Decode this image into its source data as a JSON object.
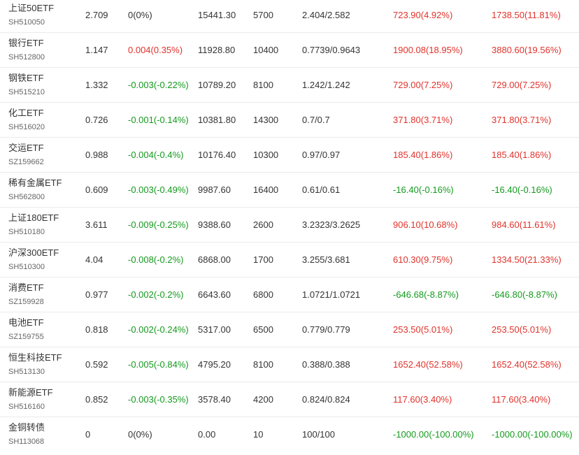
{
  "colors": {
    "up": "#e0322b",
    "down": "#139a1d",
    "neutral": "#333333",
    "row_divider": "#ebebeb"
  },
  "rows": [
    {
      "name": "上证50ETF",
      "code": "SH510050",
      "price": "2.709",
      "change": "0(0%)",
      "change_dir": "neu",
      "value": "15441.30",
      "qty": "5700",
      "cost": "2.404/2.582",
      "pl": "723.90(4.92%)",
      "pl_dir": "up",
      "total": "1738.50(11.81%)",
      "total_dir": "up"
    },
    {
      "name": "银行ETF",
      "code": "SH512800",
      "price": "1.147",
      "change": "0.004(0.35%)",
      "change_dir": "up",
      "value": "11928.80",
      "qty": "10400",
      "cost": "0.7739/0.9643",
      "pl": "1900.08(18.95%)",
      "pl_dir": "up",
      "total": "3880.60(19.56%)",
      "total_dir": "up"
    },
    {
      "name": "钢铁ETF",
      "code": "SH515210",
      "price": "1.332",
      "change": "-0.003(-0.22%)",
      "change_dir": "down",
      "value": "10789.20",
      "qty": "8100",
      "cost": "1.242/1.242",
      "pl": "729.00(7.25%)",
      "pl_dir": "up",
      "total": "729.00(7.25%)",
      "total_dir": "up"
    },
    {
      "name": "化工ETF",
      "code": "SH516020",
      "price": "0.726",
      "change": "-0.001(-0.14%)",
      "change_dir": "down",
      "value": "10381.80",
      "qty": "14300",
      "cost": "0.7/0.7",
      "pl": "371.80(3.71%)",
      "pl_dir": "up",
      "total": "371.80(3.71%)",
      "total_dir": "up"
    },
    {
      "name": "交运ETF",
      "code": "SZ159662",
      "price": "0.988",
      "change": "-0.004(-0.4%)",
      "change_dir": "down",
      "value": "10176.40",
      "qty": "10300",
      "cost": "0.97/0.97",
      "pl": "185.40(1.86%)",
      "pl_dir": "up",
      "total": "185.40(1.86%)",
      "total_dir": "up"
    },
    {
      "name": "稀有金属ETF",
      "code": "SH562800",
      "price": "0.609",
      "change": "-0.003(-0.49%)",
      "change_dir": "down",
      "value": "9987.60",
      "qty": "16400",
      "cost": "0.61/0.61",
      "pl": "-16.40(-0.16%)",
      "pl_dir": "down",
      "total": "-16.40(-0.16%)",
      "total_dir": "down"
    },
    {
      "name": "上证180ETF",
      "code": "SH510180",
      "price": "3.611",
      "change": "-0.009(-0.25%)",
      "change_dir": "down",
      "value": "9388.60",
      "qty": "2600",
      "cost": "3.2323/3.2625",
      "pl": "906.10(10.68%)",
      "pl_dir": "up",
      "total": "984.60(11.61%)",
      "total_dir": "up"
    },
    {
      "name": "沪深300ETF",
      "code": "SH510300",
      "price": "4.04",
      "change": "-0.008(-0.2%)",
      "change_dir": "down",
      "value": "6868.00",
      "qty": "1700",
      "cost": "3.255/3.681",
      "pl": "610.30(9.75%)",
      "pl_dir": "up",
      "total": "1334.50(21.33%)",
      "total_dir": "up"
    },
    {
      "name": "消费ETF",
      "code": "SZ159928",
      "price": "0.977",
      "change": "-0.002(-0.2%)",
      "change_dir": "down",
      "value": "6643.60",
      "qty": "6800",
      "cost": "1.0721/1.0721",
      "pl": "-646.68(-8.87%)",
      "pl_dir": "down",
      "total": "-646.80(-8.87%)",
      "total_dir": "down"
    },
    {
      "name": "电池ETF",
      "code": "SZ159755",
      "price": "0.818",
      "change": "-0.002(-0.24%)",
      "change_dir": "down",
      "value": "5317.00",
      "qty": "6500",
      "cost": "0.779/0.779",
      "pl": "253.50(5.01%)",
      "pl_dir": "up",
      "total": "253.50(5.01%)",
      "total_dir": "up"
    },
    {
      "name": "恒生科技ETF",
      "code": "SH513130",
      "price": "0.592",
      "change": "-0.005(-0.84%)",
      "change_dir": "down",
      "value": "4795.20",
      "qty": "8100",
      "cost": "0.388/0.388",
      "pl": "1652.40(52.58%)",
      "pl_dir": "up",
      "total": "1652.40(52.58%)",
      "total_dir": "up"
    },
    {
      "name": "新能源ETF",
      "code": "SH516160",
      "price": "0.852",
      "change": "-0.003(-0.35%)",
      "change_dir": "down",
      "value": "3578.40",
      "qty": "4200",
      "cost": "0.824/0.824",
      "pl": "117.60(3.40%)",
      "pl_dir": "up",
      "total": "117.60(3.40%)",
      "total_dir": "up"
    },
    {
      "name": "金铜转债",
      "code": "SH113068",
      "price": "0",
      "change": "0(0%)",
      "change_dir": "neu",
      "value": "0.00",
      "qty": "10",
      "cost": "100/100",
      "pl": "-1000.00(-100.00%)",
      "pl_dir": "down",
      "total": "-1000.00(-100.00%)",
      "total_dir": "down"
    }
  ]
}
